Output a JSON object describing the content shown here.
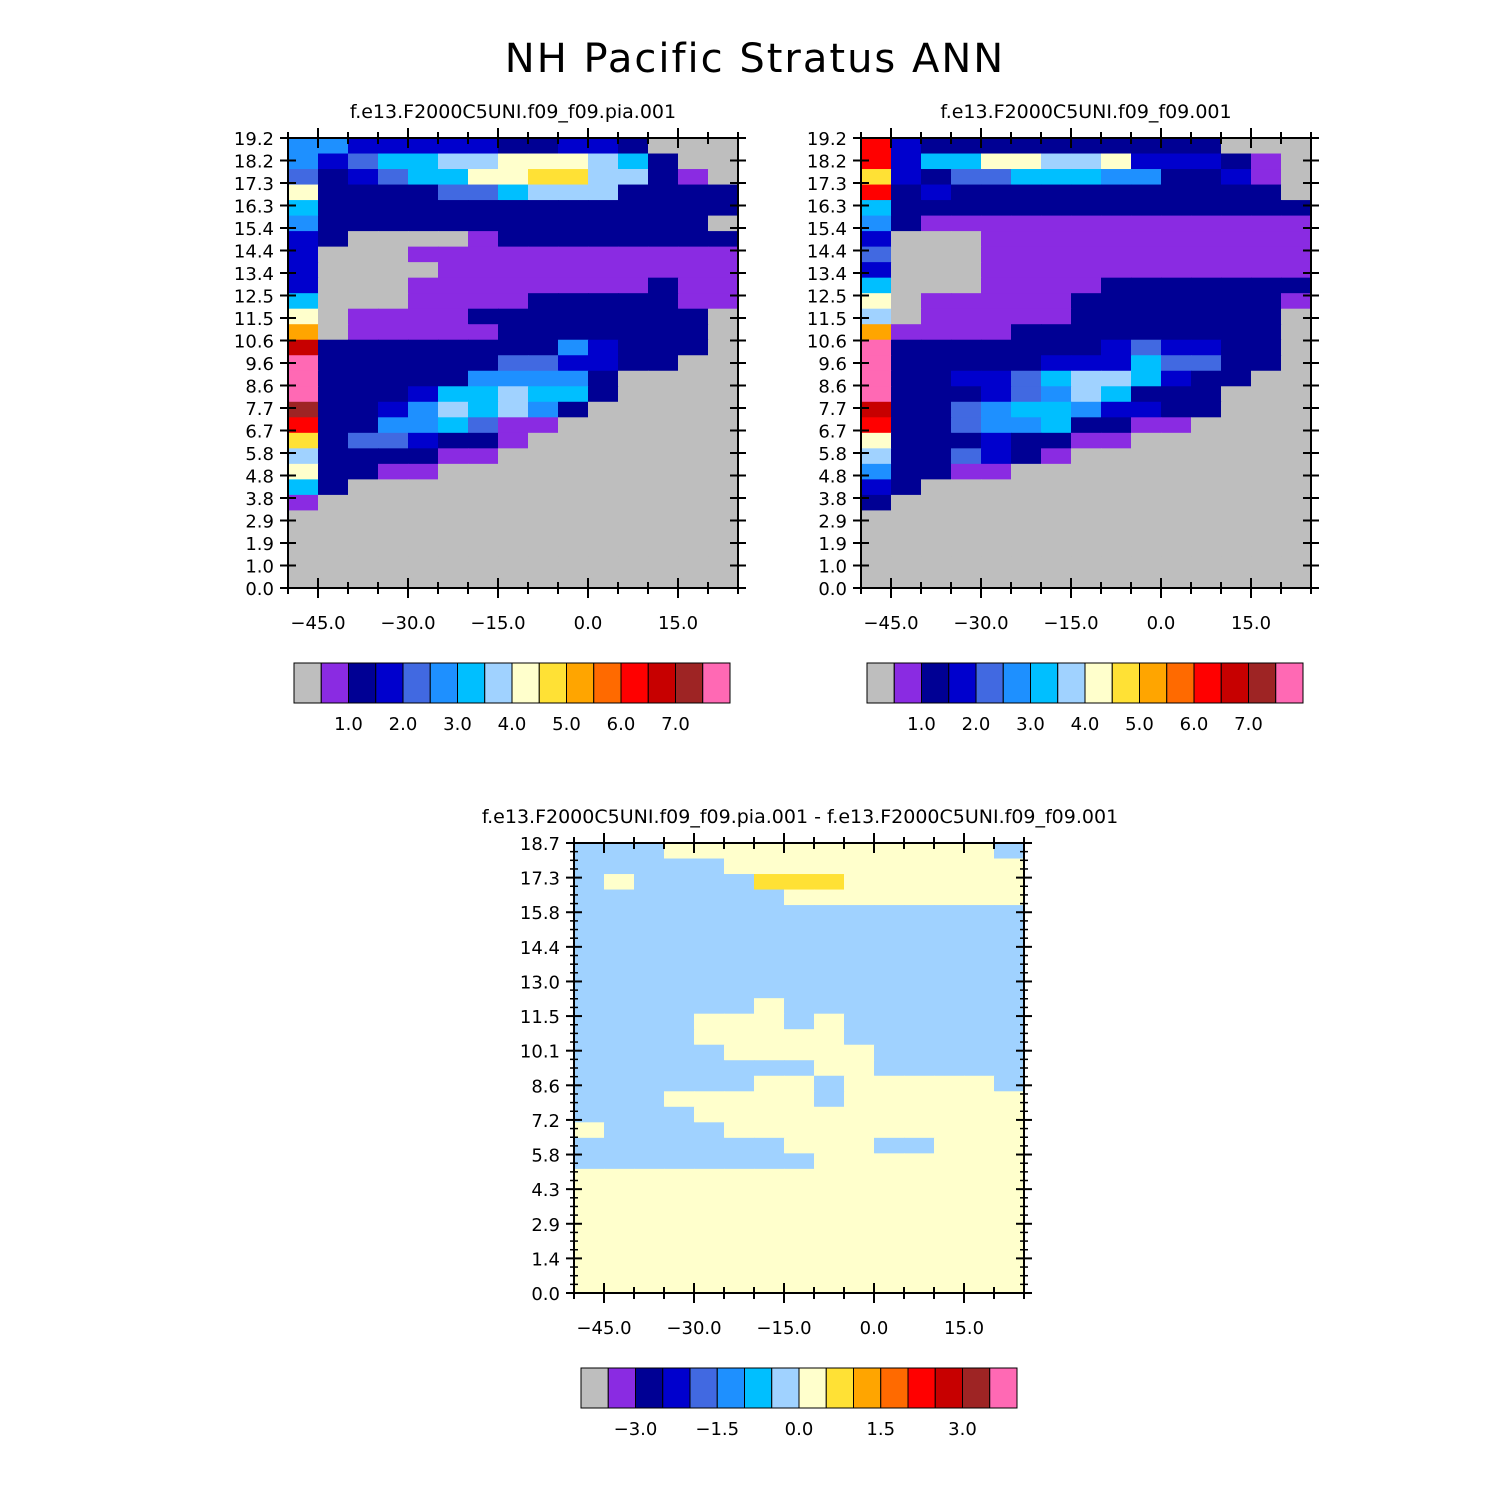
{
  "figure": {
    "title": "NH Pacific Stratus ANN"
  },
  "colors": {
    "missing": "#BEBEBE",
    "ramp_labels_note": "",
    "ramp": [
      "#8A2BE2",
      "#000094",
      "#0000CD",
      "#4169E1",
      "#1E90FF",
      "#00BFFF",
      "#A0D2FF",
      "#FFFFCC",
      "#FFE135",
      "#FFA500",
      "#FF6A00",
      "#FF0000",
      "#C70000",
      "#9E2424",
      "#FF69B4"
    ]
  },
  "chart_data": [
    {
      "type": "heatmap",
      "title": "f.e13.F2000C5UNI.f09_f09.pia.001",
      "x_ticks": [
        "-45.0",
        "-30.0",
        "-15.0",
        "0.0",
        "15.0"
      ],
      "y_ticks": [
        "0.0",
        "1.0",
        "1.9",
        "2.9",
        "3.8",
        "4.8",
        "5.8",
        "6.7",
        "7.7",
        "8.6",
        "9.6",
        "10.6",
        "11.5",
        "12.5",
        "13.4",
        "14.4",
        "15.4",
        "16.3",
        "17.3",
        "18.2",
        "19.2"
      ],
      "grid_x": [
        -50,
        25,
        15
      ],
      "grid_y": [
        0,
        19.2,
        20
      ],
      "colorbar_labels": [
        "1.0",
        "2.0",
        "3.0",
        "4.0",
        "5.0",
        "6.0",
        "7.0"
      ],
      "rows": [
        "eecccccbbccb....",
        "ecdffgghhhgfb...",
        "dbcdffhhiiggba..",
        "hbbbbddfgggbbbb.",
        "fbbbbbbbbbbbbbb.",
        "ebbbbbbbbbbbbb..",
        "cb....abbbbbbbb.",
        "c...aaaaaaaaaaa.",
        "c....aaaaaaaaaa.",
        "c...aaaaaaaabaa.",
        "f...aaaabbbbbaa.",
        "h.aaaabbbbbbbb..",
        "j.aaaaabbbbbbb..",
        "mbbbbbbbbecbbb..",
        "obbbbbbddccbb...",
        "obbbbbeeeeb.....",
        "obbbcffgffb.....",
        "nbbcegfgeb......",
        "lbbeefdaa.......",
        "ibddcbba........",
        "gbbbbaa.........",
        "hbbaa...........",
        "fb..............",
        "a...............",
        "................",
        "................",
        "................",
        "................",
        "................"
      ]
    },
    {
      "type": "heatmap",
      "title": "f.e13.F2000C5UNI.f09_f09.001",
      "x_ticks": [
        "-45.0",
        "-30.0",
        "-15.0",
        "0.0",
        "15.0"
      ],
      "y_ticks": [
        "0.0",
        "1.0",
        "1.9",
        "2.9",
        "3.8",
        "4.8",
        "5.8",
        "6.7",
        "7.7",
        "8.6",
        "9.6",
        "10.6",
        "11.5",
        "12.5",
        "13.4",
        "14.4",
        "15.4",
        "16.3",
        "17.3",
        "18.2",
        "19.2"
      ],
      "grid_x": [
        -50,
        25,
        15
      ],
      "grid_y": [
        0,
        19.2,
        20
      ],
      "colorbar_labels": [
        "1.0",
        "2.0",
        "3.0",
        "4.0",
        "5.0",
        "6.0",
        "7.0"
      ],
      "rows": [
        "lcbbbbbbbbbb....",
        "lcffhhgghcccba..",
        "icbddfffeebbca..",
        "lbcbbbbbbbbbbb..",
        "fbbbbbbbbbbbbbb.",
        "ebaaaaaaaaaaaaab",
        "c...aaaaaaaaaaa.",
        "d...aaaaaaaaaaa.",
        "c...aaaaaaaaaaa.",
        "f...aaaabbbbbbba",
        "h.aaaaabbbbbbba.",
        "g.aaaaabbbbbbb..",
        "jaaaabbbbbbbbb..",
        "obbbbbbbcdccbb..",
        "obbbbbcccfddbb..",
        "obbccdfggfcbb...",
        "obbbcdegfbbb....",
        "mbbdeffeccbb....",
        "lbbdeefbbaa.....",
        "hbbbcbbaa.......",
        "gbbdcba.........",
        "ebbaa...........",
        "cb..............",
        "b...............",
        "................",
        "................",
        "................",
        "................",
        "................"
      ]
    },
    {
      "type": "heatmap",
      "title": "f.e13.F2000C5UNI.f09_f09.pia.001 - f.e13.F2000C5UNI.f09_f09.001",
      "x_ticks": [
        "-45.0",
        "-30.0",
        "-15.0",
        "0.0",
        "15.0"
      ],
      "y_ticks": [
        "0.0",
        "1.4",
        "2.9",
        "4.3",
        "5.8",
        "7.2",
        "8.6",
        "10.1",
        "11.5",
        "13.0",
        "14.4",
        "15.8",
        "17.3",
        "18.7"
      ],
      "grid_x": [
        -50,
        25,
        15
      ],
      "grid_y": [
        0,
        19.2,
        20
      ],
      "colorbar_labels": [
        "-3.0",
        "-1.5",
        "0.0",
        "1.5",
        "3.0"
      ],
      "rows": [
        "ggghhhhhhhhhhhgh",
        "ggggghhhhhhhhhhh",
        "ghggggiiihhhhhhh",
        "ggggggghhhhhhhhh",
        "gggggggggggggggg",
        "gggggggggggggggg",
        "gggggggggggggggg",
        "gggggggggggggggg",
        "gggggggggggggggg",
        "gggggggggggggggg",
        "gggggghggggggggg",
        "gggghhhghggggggh",
        "gggghhhhhgggggggh",
        "ggggghhhhhggggggg",
        "gggggggghhgggggg",
        "gggggghhghhhhhgg",
        "ggghhhhhghhhhhhg",
        "gggghhhhhhhhhhhh",
        "hgggghhhhhhhhhhh",
        "ggggggghhhgghhhh",
        "gggggggghhhhhhhh",
        "hhhhhhhhhhhhhhhh",
        "hhhhhhhhhhhhhhhh",
        "hhhhhhhhhhhhhhhh",
        "hhhhhhhhhhhhhhhh",
        "hhhhhhhhhhhhhhhh",
        "hhhhhhhhhhhhhhhh",
        "hhhhhhhhhhhhhhhh",
        "hhhhhhhhhhhhhhhh"
      ]
    }
  ]
}
